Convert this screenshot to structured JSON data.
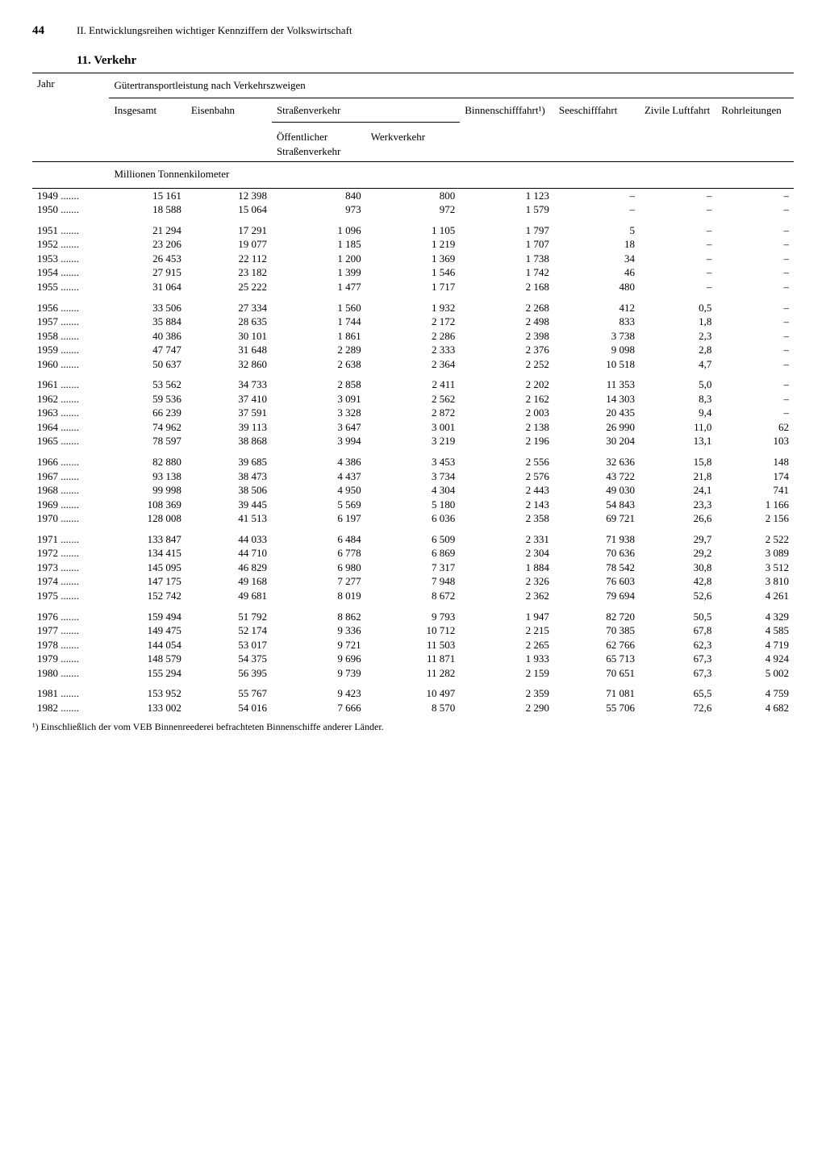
{
  "pageNumber": "44",
  "chapterTitle": "II. Entwicklungsreihen wichtiger Kennziffern der Volkswirtschaft",
  "sectionTitle": "11. Verkehr",
  "columns": {
    "year": "Jahr",
    "superhead": "Gütertransportleistung nach Verkehrszweigen",
    "insgesamt": "Insgesamt",
    "eisenbahn": "Eisenbahn",
    "strassenverkehr": "Straßenverkehr",
    "oeffentlicher": "Öffentlicher Straßen­verkehr",
    "werkverkehr": "Werkverkehr",
    "binnen": "Binnenschiff­fahrt¹)",
    "see": "Seeschiff­fahrt",
    "luft": "Zivile Luftfahrt",
    "rohr": "Rohr­leitungen"
  },
  "unitLabel": "Millionen Tonnenkilometer",
  "footnote": "¹) Einschließlich der vom VEB Binnenreederei befrachteten Binnenschiffe anderer Länder.",
  "groups": [
    [
      {
        "year": "1949",
        "c": [
          "15 161",
          "12 398",
          "840",
          "800",
          "1 123",
          "–",
          "–",
          "–"
        ]
      },
      {
        "year": "1950",
        "c": [
          "18 588",
          "15 064",
          "973",
          "972",
          "1 579",
          "–",
          "–",
          "–"
        ]
      }
    ],
    [
      {
        "year": "1951",
        "c": [
          "21 294",
          "17 291",
          "1 096",
          "1 105",
          "1 797",
          "5",
          "–",
          "–"
        ]
      },
      {
        "year": "1952",
        "c": [
          "23 206",
          "19 077",
          "1 185",
          "1 219",
          "1 707",
          "18",
          "–",
          "–"
        ]
      },
      {
        "year": "1953",
        "c": [
          "26 453",
          "22 112",
          "1 200",
          "1 369",
          "1 738",
          "34",
          "–",
          "–"
        ]
      },
      {
        "year": "1954",
        "c": [
          "27 915",
          "23 182",
          "1 399",
          "1 546",
          "1 742",
          "46",
          "–",
          "–"
        ]
      },
      {
        "year": "1955",
        "c": [
          "31 064",
          "25 222",
          "1 477",
          "1 717",
          "2 168",
          "480",
          "–",
          "–"
        ]
      }
    ],
    [
      {
        "year": "1956",
        "c": [
          "33 506",
          "27 334",
          "1 560",
          "1 932",
          "2 268",
          "412",
          "0,5",
          "–"
        ]
      },
      {
        "year": "1957",
        "c": [
          "35 884",
          "28 635",
          "1 744",
          "2 172",
          "2 498",
          "833",
          "1,8",
          "–"
        ]
      },
      {
        "year": "1958",
        "c": [
          "40 386",
          "30 101",
          "1 861",
          "2 286",
          "2 398",
          "3 738",
          "2,3",
          "–"
        ]
      },
      {
        "year": "1959",
        "c": [
          "47 747",
          "31 648",
          "2 289",
          "2 333",
          "2 376",
          "9 098",
          "2,8",
          "–"
        ]
      },
      {
        "year": "1960",
        "c": [
          "50 637",
          "32 860",
          "2 638",
          "2 364",
          "2 252",
          "10 518",
          "4,7",
          "–"
        ]
      }
    ],
    [
      {
        "year": "1961",
        "c": [
          "53 562",
          "34 733",
          "2 858",
          "2 411",
          "2 202",
          "11 353",
          "5,0",
          "–"
        ]
      },
      {
        "year": "1962",
        "c": [
          "59 536",
          "37 410",
          "3 091",
          "2 562",
          "2 162",
          "14 303",
          "8,3",
          "–"
        ]
      },
      {
        "year": "1963",
        "c": [
          "66 239",
          "37 591",
          "3 328",
          "2 872",
          "2 003",
          "20 435",
          "9,4",
          "–"
        ]
      },
      {
        "year": "1964",
        "c": [
          "74 962",
          "39 113",
          "3 647",
          "3 001",
          "2 138",
          "26 990",
          "11,0",
          "62"
        ]
      },
      {
        "year": "1965",
        "c": [
          "78 597",
          "38 868",
          "3 994",
          "3 219",
          "2 196",
          "30 204",
          "13,1",
          "103"
        ]
      }
    ],
    [
      {
        "year": "1966",
        "c": [
          "82 880",
          "39 685",
          "4 386",
          "3 453",
          "2 556",
          "32 636",
          "15,8",
          "148"
        ]
      },
      {
        "year": "1967",
        "c": [
          "93 138",
          "38 473",
          "4 437",
          "3 734",
          "2 576",
          "43 722",
          "21,8",
          "174"
        ]
      },
      {
        "year": "1968",
        "c": [
          "99 998",
          "38 506",
          "4 950",
          "4 304",
          "2 443",
          "49 030",
          "24,1",
          "741"
        ]
      },
      {
        "year": "1969",
        "c": [
          "108 369",
          "39 445",
          "5 569",
          "5 180",
          "2 143",
          "54 843",
          "23,3",
          "1 166"
        ]
      },
      {
        "year": "1970",
        "c": [
          "128 008",
          "41 513",
          "6 197",
          "6 036",
          "2 358",
          "69 721",
          "26,6",
          "2 156"
        ]
      }
    ],
    [
      {
        "year": "1971",
        "c": [
          "133 847",
          "44 033",
          "6 484",
          "6 509",
          "2 331",
          "71 938",
          "29,7",
          "2 522"
        ]
      },
      {
        "year": "1972",
        "c": [
          "134 415",
          "44 710",
          "6 778",
          "6 869",
          "2 304",
          "70 636",
          "29,2",
          "3 089"
        ]
      },
      {
        "year": "1973",
        "c": [
          "145 095",
          "46 829",
          "6 980",
          "7 317",
          "1 884",
          "78 542",
          "30,8",
          "3 512"
        ]
      },
      {
        "year": "1974",
        "c": [
          "147 175",
          "49 168",
          "7 277",
          "7 948",
          "2 326",
          "76 603",
          "42,8",
          "3 810"
        ]
      },
      {
        "year": "1975",
        "c": [
          "152 742",
          "49 681",
          "8 019",
          "8 672",
          "2 362",
          "79 694",
          "52,6",
          "4 261"
        ]
      }
    ],
    [
      {
        "year": "1976",
        "c": [
          "159 494",
          "51 792",
          "8 862",
          "9 793",
          "1 947",
          "82 720",
          "50,5",
          "4 329"
        ]
      },
      {
        "year": "1977",
        "c": [
          "149 475",
          "52 174",
          "9 336",
          "10 712",
          "2 215",
          "70 385",
          "67,8",
          "4 585"
        ]
      },
      {
        "year": "1978",
        "c": [
          "144 054",
          "53 017",
          "9 721",
          "11 503",
          "2 265",
          "62 766",
          "62,3",
          "4 719"
        ]
      },
      {
        "year": "1979",
        "c": [
          "148 579",
          "54 375",
          "9 696",
          "11 871",
          "1 933",
          "65 713",
          "67,3",
          "4 924"
        ]
      },
      {
        "year": "1980",
        "c": [
          "155 294",
          "56 395",
          "9 739",
          "11 282",
          "2 159",
          "70 651",
          "67,3",
          "5 002"
        ]
      }
    ],
    [
      {
        "year": "1981",
        "c": [
          "153 952",
          "55 767",
          "9 423",
          "10 497",
          "2 359",
          "71 081",
          "65,5",
          "4 759"
        ]
      },
      {
        "year": "1982",
        "c": [
          "133 002",
          "54 016",
          "7 666",
          "8 570",
          "2 290",
          "55 706",
          "72,6",
          "4 682"
        ]
      }
    ]
  ],
  "colWidths": [
    "90",
    "90",
    "100",
    "110",
    "110",
    "110",
    "100",
    "90",
    "90"
  ]
}
